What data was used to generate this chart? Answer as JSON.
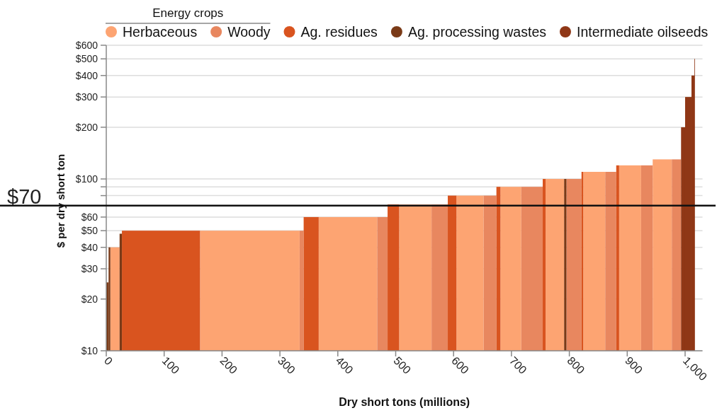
{
  "chart_data": {
    "type": "histogram",
    "xlabel": "Dry short tons (millions)",
    "ylabel": "$ per dry short ton",
    "legend_title": "Energy crops",
    "legend": "top",
    "grid": "y",
    "log": true,
    "bins": [
      0,
      4,
      7,
      23,
      27,
      162,
      334,
      341,
      367,
      468,
      486,
      506,
      562,
      590,
      605,
      652,
      674,
      681,
      717,
      754,
      759,
      791,
      795,
      821,
      824,
      862,
      881,
      886,
      924,
      944,
      977,
      993,
      1000,
      1011,
      1016,
      1017
    ],
    "series": [
      {
        "name": "Herbaceous",
        "color": "#fda472",
        "values": [
          null,
          null,
          40,
          null,
          null,
          50,
          null,
          null,
          60,
          null,
          null,
          71,
          null,
          null,
          80,
          null,
          null,
          90,
          null,
          null,
          100,
          null,
          null,
          null,
          110,
          null,
          null,
          120,
          null,
          130,
          null,
          null,
          null,
          null,
          null
        ]
      },
      {
        "name": "Woody",
        "color": "#e8875f",
        "values": [
          null,
          null,
          null,
          null,
          null,
          null,
          50,
          null,
          null,
          60,
          null,
          null,
          71,
          null,
          null,
          80,
          null,
          null,
          90,
          null,
          null,
          null,
          100,
          null,
          null,
          110,
          null,
          null,
          120,
          null,
          130,
          null,
          null,
          null,
          null
        ]
      },
      {
        "name": "Ag. residues",
        "color": "#d9541f",
        "values": [
          null,
          null,
          null,
          null,
          50,
          null,
          null,
          60,
          null,
          null,
          71,
          null,
          null,
          80,
          null,
          null,
          90,
          null,
          null,
          100,
          null,
          null,
          null,
          110,
          null,
          null,
          120,
          null,
          null,
          null,
          null,
          null,
          null,
          null,
          null
        ]
      },
      {
        "name": "Ag. processing wastes",
        "color": "#7a3a17",
        "values": [
          25,
          40,
          null,
          48,
          null,
          null,
          null,
          null,
          null,
          null,
          null,
          null,
          null,
          null,
          null,
          null,
          null,
          null,
          null,
          null,
          null,
          100,
          null,
          null,
          null,
          null,
          null,
          null,
          null,
          null,
          null,
          null,
          null,
          null,
          null
        ]
      },
      {
        "name": "Intermediate oilseeds",
        "color": "#8f3716",
        "values": [
          null,
          null,
          null,
          null,
          null,
          null,
          null,
          null,
          null,
          null,
          null,
          null,
          null,
          null,
          null,
          null,
          null,
          null,
          null,
          null,
          null,
          null,
          null,
          null,
          null,
          null,
          null,
          null,
          null,
          null,
          null,
          200,
          300,
          400,
          500
        ]
      }
    ],
    "xlim": [
      0,
      1030
    ],
    "xticks": [
      0,
      100,
      200,
      300,
      400,
      500,
      600,
      700,
      800,
      900,
      {
        "value": 1000,
        "label": "1,000"
      }
    ],
    "ylim": [
      10,
      600
    ],
    "yticks": [
      {
        "value": 10,
        "label": "$10"
      },
      {
        "value": 20,
        "label": "$20"
      },
      {
        "value": 30,
        "label": "$30"
      },
      {
        "value": 40,
        "label": "$40"
      },
      {
        "value": 50,
        "label": "$50"
      },
      {
        "value": 60,
        "label": "$60"
      },
      {
        "value": 70,
        "label": null
      },
      {
        "value": 80,
        "label": null
      },
      {
        "value": 90,
        "label": null
      },
      {
        "value": 100,
        "label": "$100"
      },
      {
        "value": 200,
        "label": "$200"
      },
      {
        "value": 300,
        "label": "$300"
      },
      {
        "value": 400,
        "label": "$400"
      },
      {
        "value": 500,
        "label": "$500"
      },
      {
        "value": 600,
        "label": "$600"
      }
    ],
    "ref_lines": [
      {
        "axis": "y",
        "value": 70,
        "label": "$70",
        "color": "#111111"
      }
    ]
  }
}
